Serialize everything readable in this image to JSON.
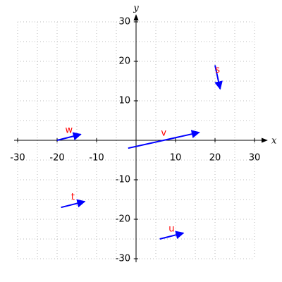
{
  "chart_data": {
    "type": "vector",
    "xlabel": "x",
    "ylabel": "y",
    "xlim": [
      -30,
      30
    ],
    "ylim": [
      -30,
      30
    ],
    "xticks": [
      -30,
      -20,
      -10,
      10,
      20,
      30
    ],
    "yticks": [
      -30,
      -20,
      -10,
      10,
      20,
      30
    ],
    "xgrid": [
      -30,
      -25,
      -20,
      -15,
      -10,
      -5,
      0,
      5,
      10,
      15,
      20,
      25,
      30
    ],
    "ygrid": [
      -30,
      -25,
      -20,
      -15,
      -10,
      -5,
      0,
      5,
      10,
      15,
      20,
      25,
      30
    ],
    "grid": true,
    "color": "#0000ff",
    "label_color": "#ff0000",
    "vectors": [
      {
        "name": "w",
        "start": [
          -20,
          0
        ],
        "end": [
          -14,
          1.5
        ]
      },
      {
        "name": "v",
        "start": [
          -2,
          -2
        ],
        "end": [
          16,
          2
        ]
      },
      {
        "name": "s",
        "start": [
          20,
          19
        ],
        "end": [
          21.3,
          13
        ]
      },
      {
        "name": "t",
        "start": [
          -19,
          -17
        ],
        "end": [
          -13,
          -15.5
        ]
      },
      {
        "name": "u",
        "start": [
          6,
          -25
        ],
        "end": [
          12,
          -23.5
        ]
      }
    ]
  }
}
